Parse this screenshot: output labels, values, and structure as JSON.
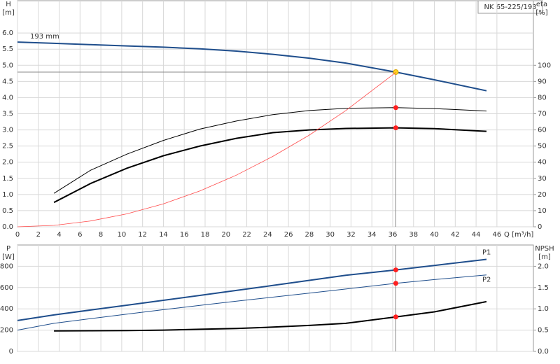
{
  "chart_data": [
    {
      "type": "line",
      "title": "NK 65-225/193",
      "y_label": "H",
      "y_unit": "[m]",
      "y2_label": "eta",
      "y2_unit": "[%]",
      "x_label": "Q [m³/h]",
      "x": [
        0,
        3.5,
        7,
        10.5,
        14,
        17.5,
        21,
        24.5,
        28,
        31.5,
        36.3,
        40,
        45
      ],
      "xlim": [
        0,
        49.5
      ],
      "xticks": [
        0,
        2,
        4,
        6,
        8,
        10,
        12,
        14,
        16,
        18,
        20,
        22,
        24,
        26,
        28,
        30,
        32,
        34,
        36,
        38,
        40,
        42,
        44,
        46
      ],
      "xtick_labels": true,
      "ylim": [
        0,
        7
      ],
      "yticks": [
        {
          "value": 0,
          "label": "0.0"
        },
        0.5,
        {
          "value": 1,
          "label": "1.0"
        },
        1.5,
        {
          "value": 2,
          "label": "2.0"
        },
        2.5,
        {
          "value": 3,
          "label": "3.0"
        },
        3.5,
        {
          "value": 4,
          "label": "4.0"
        },
        4.5,
        {
          "value": 5,
          "label": "5.0"
        },
        5.5,
        {
          "value": 6,
          "label": "6.0"
        }
      ],
      "y2lim": [
        0,
        140
      ],
      "y2ticks": [
        0,
        10,
        20,
        30,
        40,
        50,
        60,
        70,
        80,
        90,
        100
      ],
      "grid": true,
      "duty_x": 36.3,
      "series": [
        {
          "name": "193 mm",
          "color": "#1f4e8c",
          "width": 2,
          "point_color": "#ffd21f",
          "values": [
            5.72,
            5.68,
            5.64,
            5.6,
            5.56,
            5.51,
            5.44,
            5.34,
            5.22,
            5.07,
            4.79,
            4.55,
            4.21
          ]
        },
        {
          "color": "#000000",
          "width": 1,
          "axis": "y2",
          "point_color": "#ff2020",
          "values": [
            null,
            20.7,
            35,
            45,
            53.5,
            60.5,
            65.5,
            69.5,
            72,
            73.4,
            73.8,
            73.2,
            71.7
          ]
        },
        {
          "color": "#000000",
          "width": 2,
          "axis": "y2",
          "point_color": "#ff2020",
          "values": [
            null,
            15.1,
            26.8,
            36.3,
            44,
            50,
            54.8,
            58.3,
            60,
            60.9,
            61.3,
            60.8,
            59.1
          ]
        },
        {
          "color": "#ff4a4a",
          "width": 0.8,
          "values": [
            0,
            0.044,
            0.18,
            0.4,
            0.71,
            1.11,
            1.6,
            2.18,
            2.84,
            3.6,
            4.78,
            null,
            null
          ]
        }
      ]
    },
    {
      "type": "line",
      "y_label": "P",
      "y_unit": "[W]",
      "y2_label": "NPSH",
      "y2_unit": "[m]",
      "x": [
        0,
        3.5,
        7,
        10.5,
        14,
        17.5,
        21,
        24.5,
        28,
        31.5,
        36.3,
        40,
        45
      ],
      "xlim": [
        0,
        49.5
      ],
      "xticks": [
        0,
        2,
        4,
        6,
        8,
        10,
        12,
        14,
        16,
        18,
        20,
        22,
        24,
        26,
        28,
        30,
        32,
        34,
        36,
        38,
        40,
        42,
        44,
        46
      ],
      "xtick_labels": false,
      "ylim": [
        0,
        1000
      ],
      "yticks": [
        0,
        200,
        400,
        600,
        800
      ],
      "y2lim": [
        0,
        2.5
      ],
      "y2ticks": [
        {
          "value": 0,
          "label": "0.0"
        },
        0.5,
        {
          "value": 1,
          "label": "1.0"
        },
        1.5,
        {
          "value": 2,
          "label": "2.0"
        }
      ],
      "grid": true,
      "duty_x": 36.3,
      "series": [
        {
          "name": "P1",
          "color": "#1f4e8c",
          "width": 2,
          "point_color": "#ff2020",
          "values": [
            290,
            343,
            389,
            434,
            480,
            526,
            573,
            620,
            668,
            716,
            766,
            808,
            865
          ]
        },
        {
          "name": "P2",
          "color": "#1f4e8c",
          "width": 1,
          "point_color": "#ff2020",
          "values": [
            200,
            264,
            308,
            350,
            392,
            432,
            472,
            510,
            548,
            586,
            640,
            675,
            719
          ]
        },
        {
          "color": "#000000",
          "width": 2,
          "axis": "y2",
          "point_color": "#ff2020",
          "values": [
            null,
            0.48,
            0.485,
            0.49,
            0.5,
            0.52,
            0.54,
            0.57,
            0.61,
            0.66,
            0.81,
            0.93,
            1.17
          ]
        }
      ]
    }
  ]
}
